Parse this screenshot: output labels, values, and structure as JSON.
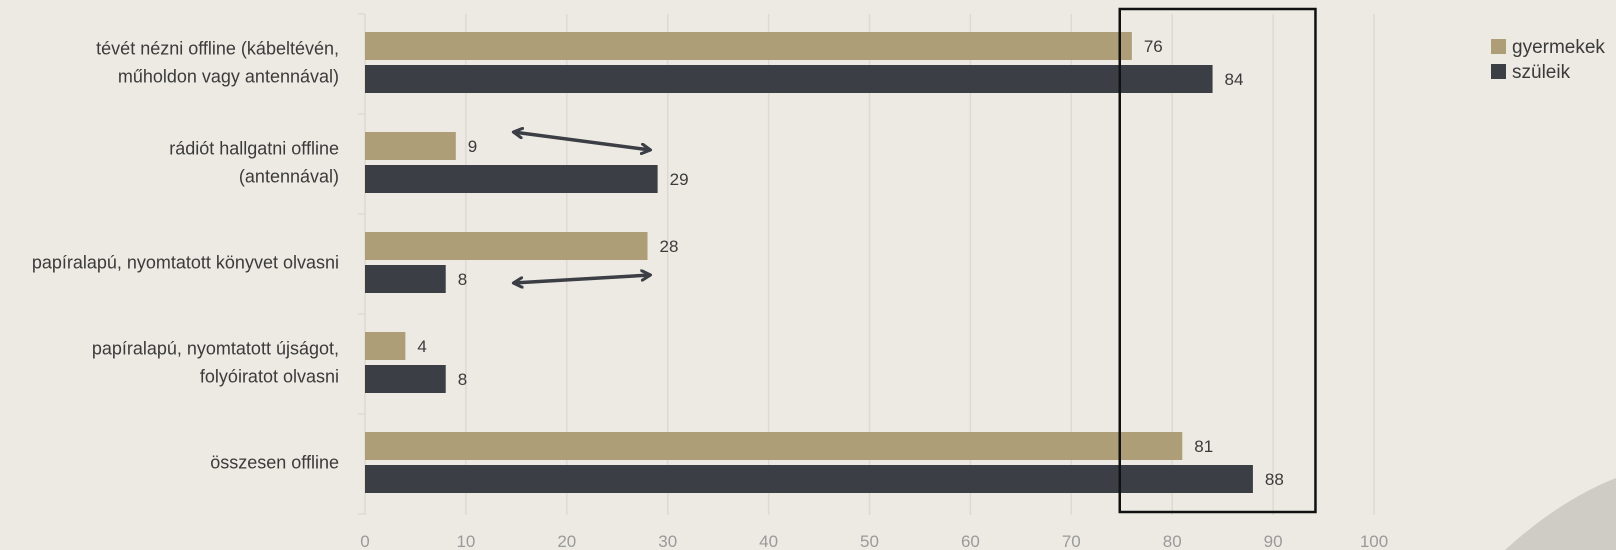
{
  "chart_data": {
    "type": "bar",
    "orientation": "horizontal",
    "categories": [
      [
        "tévét nézni offline (kábeltévén,",
        "műholdon vagy antennával)"
      ],
      [
        "rádiót hallgatni offline",
        "(antennával)"
      ],
      [
        "papíralapú, nyomtatott könyvet olvasni"
      ],
      [
        "papíralapú, nyomtatott újságot,",
        "folyóiratot olvasni"
      ],
      [
        "összesen offline"
      ]
    ],
    "series": [
      {
        "name": "gyermekek",
        "color": "#ad9e77",
        "values": [
          76,
          9,
          28,
          4,
          81
        ]
      },
      {
        "name": "szüleik",
        "color": "#3c3e46",
        "values": [
          84,
          29,
          8,
          8,
          88
        ]
      }
    ],
    "xlim": [
      0,
      100
    ],
    "xticks": [
      0,
      10,
      20,
      30,
      40,
      50,
      60,
      70,
      80,
      90,
      100
    ],
    "grid": true,
    "legend_position": "top-right",
    "highlight_box_range": [
      75,
      94
    ],
    "annotations": [
      {
        "type": "double-arrow",
        "from": [
          15,
          "rádiót hallgatni offline (gyermekek)"
        ],
        "to": [
          28,
          "rádiót hallgatni offline (szüleik)"
        ]
      },
      {
        "type": "double-arrow",
        "from": [
          15,
          "papíralapú, nyomtatott könyvet olvasni (szüleik)"
        ],
        "to": [
          28,
          "papíralapú, nyomtatott könyvet olvasni (gyermekek)"
        ]
      }
    ],
    "colors": {
      "background": "#edeae3",
      "grid": "#dedad2",
      "tick_text": "#9a9a9a",
      "label_text": "#3b3b3b",
      "box": "#111111",
      "arrow": "#3c3e46",
      "corner_shape": "#cfccc6"
    }
  }
}
